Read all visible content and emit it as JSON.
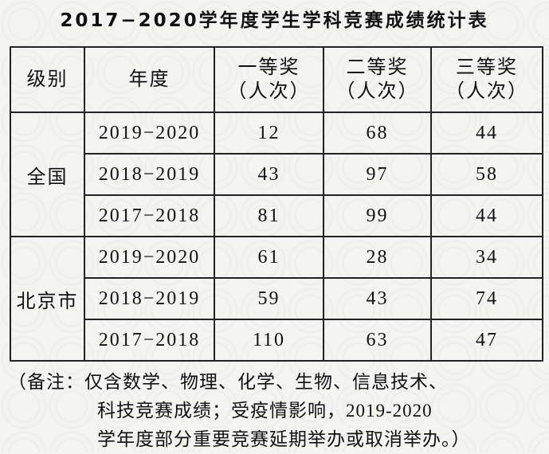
{
  "title": "2017−2020学年度学生学科竞赛成绩统计表",
  "table": {
    "header": {
      "level": "级别",
      "year": "年度",
      "awards": [
        {
          "name": "一等奖",
          "unit": "（人次）"
        },
        {
          "name": "二等奖",
          "unit": "（人次）"
        },
        {
          "name": "三等奖",
          "unit": "（人次）"
        }
      ]
    },
    "groups": [
      {
        "name": "全国",
        "rows": [
          {
            "year": "2019−2020",
            "values": [
              12,
              68,
              44
            ]
          },
          {
            "year": "2018−2019",
            "values": [
              43,
              97,
              58
            ]
          },
          {
            "year": "2017−2018",
            "values": [
              81,
              99,
              44
            ]
          }
        ]
      },
      {
        "name": "北京市",
        "rows": [
          {
            "year": "2019−2020",
            "values": [
              61,
              28,
              34
            ]
          },
          {
            "year": "2018−2019",
            "values": [
              59,
              43,
              74
            ]
          },
          {
            "year": "2017−2018",
            "values": [
              110,
              63,
              47
            ]
          }
        ]
      }
    ]
  },
  "note": [
    "（备注：仅含数学、物理、化学、生物、信息技术、",
    "科技竞赛成绩；受疫情影响，2019-2020",
    "学年度部分重要竞赛延期举办或取消举办。）"
  ]
}
